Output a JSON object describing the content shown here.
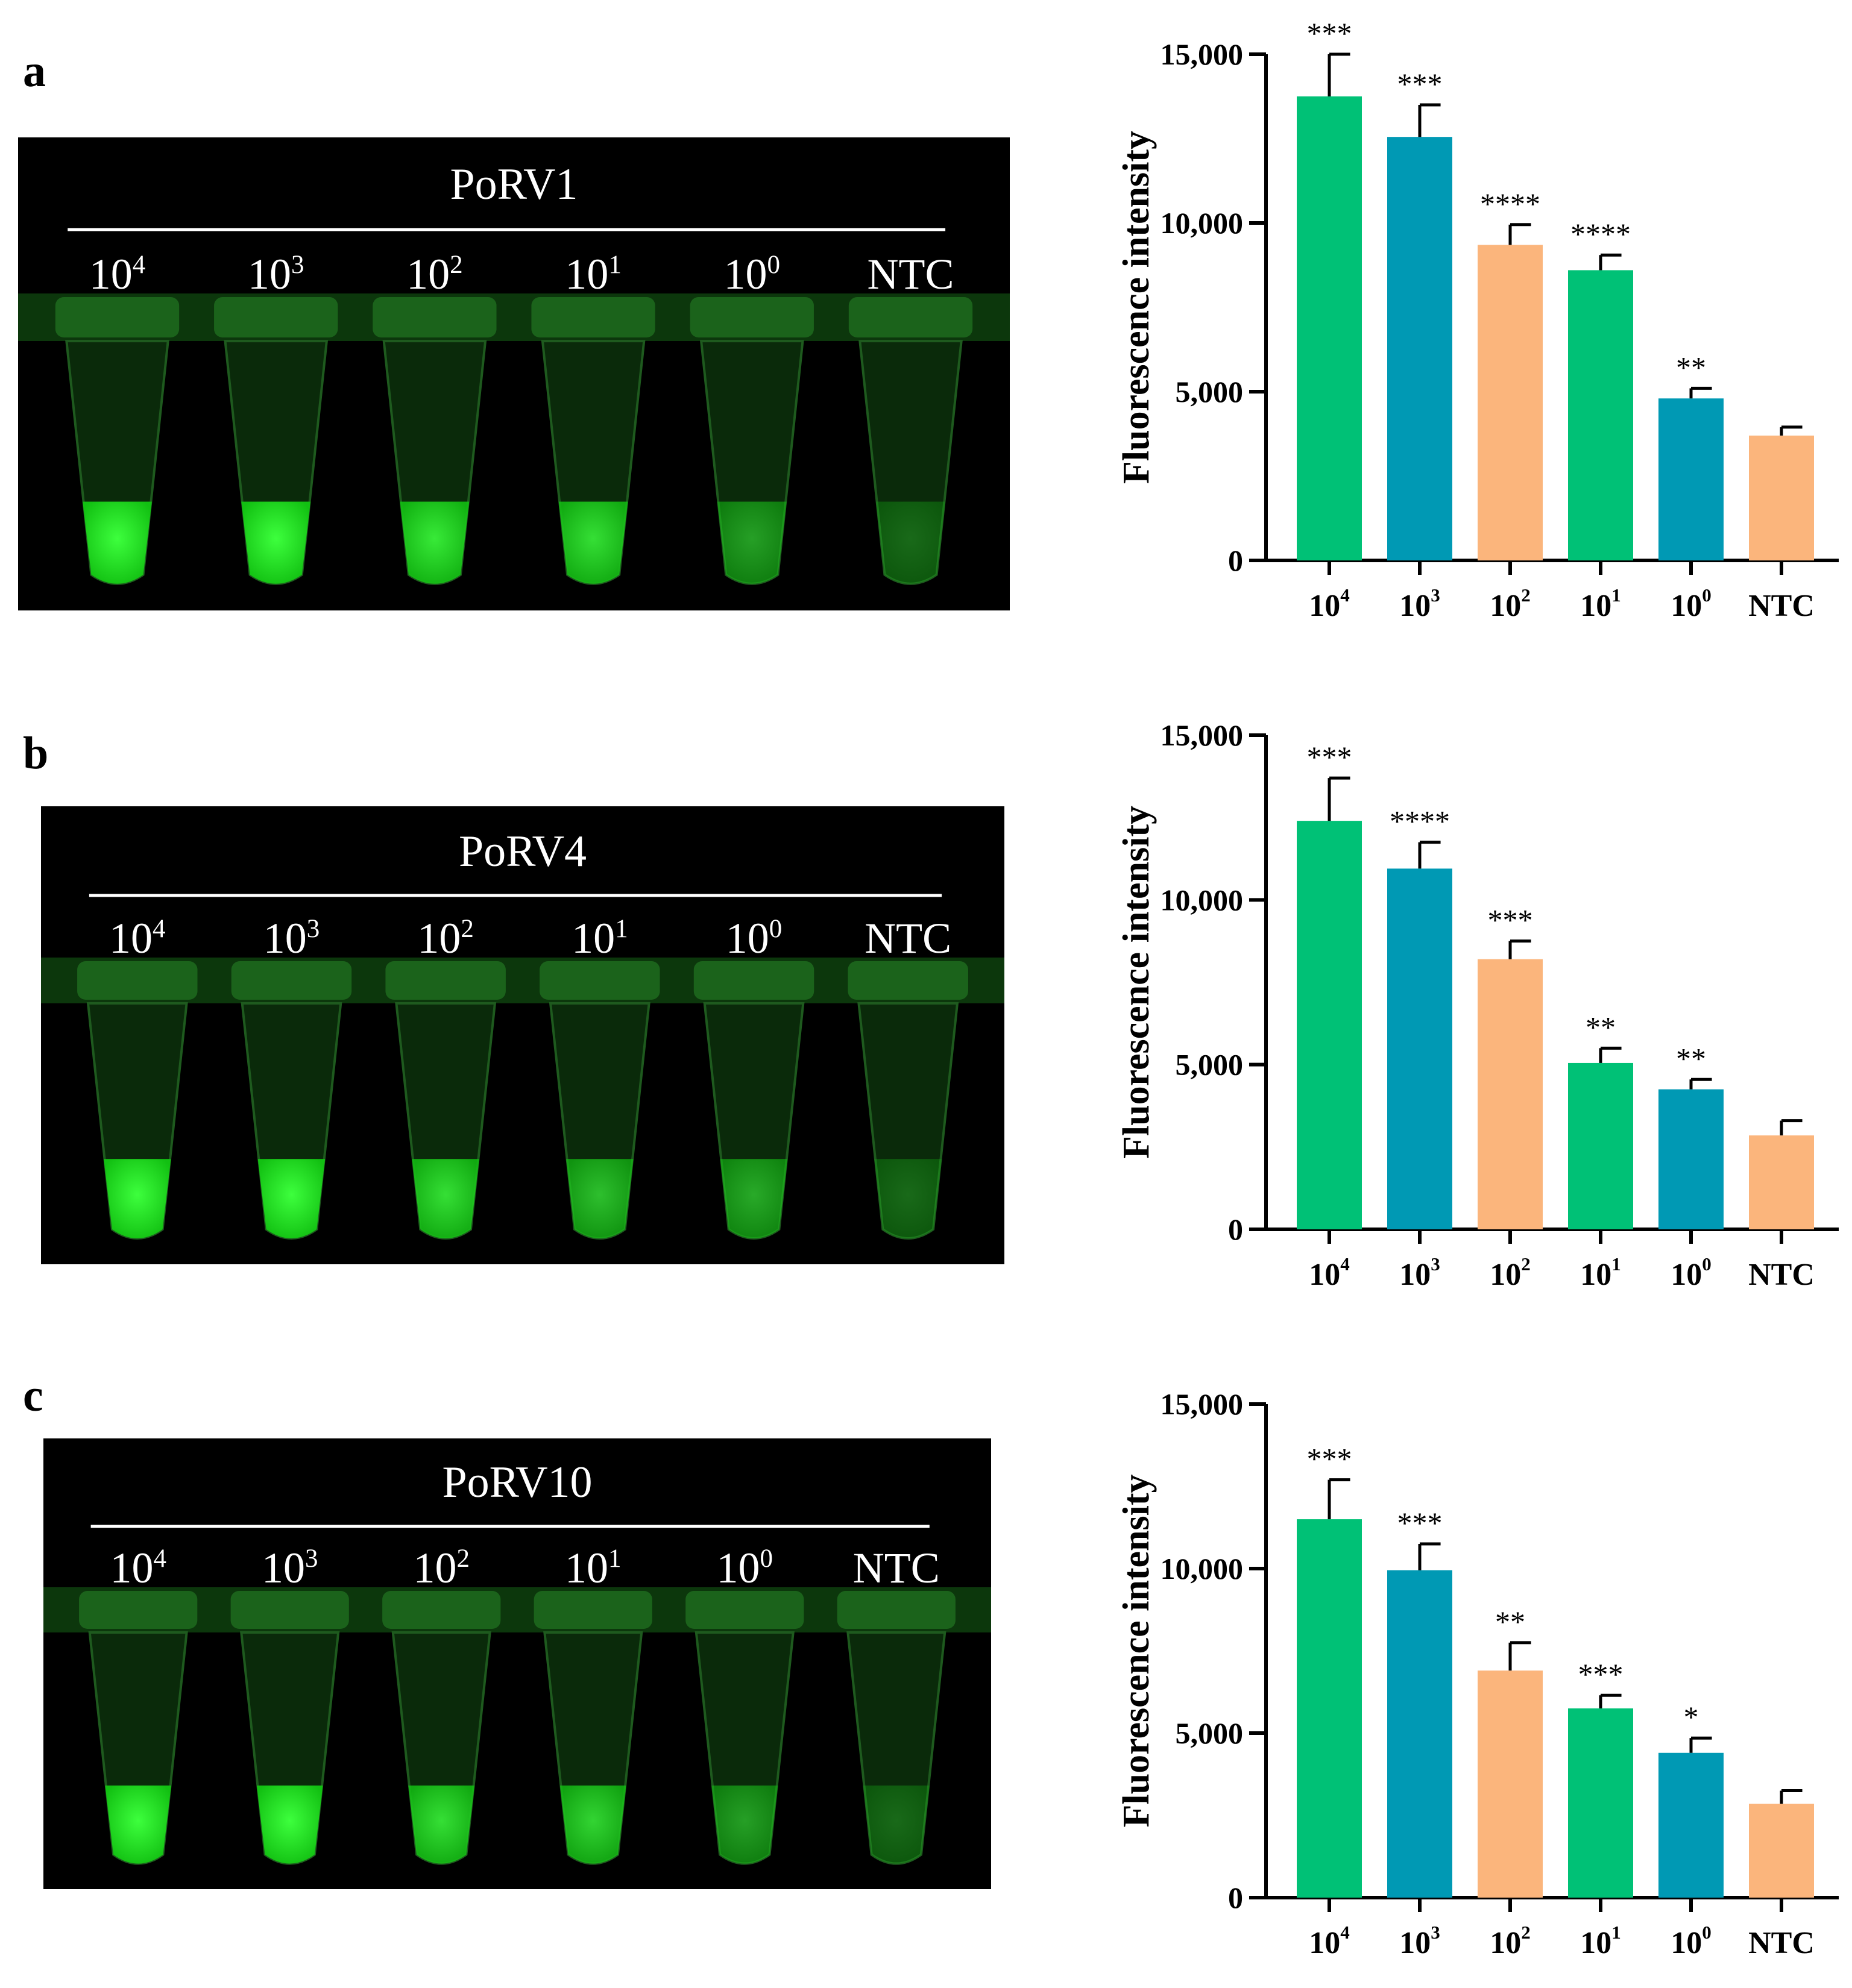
{
  "panels": [
    {
      "label": "a",
      "photo": {
        "title": "PoRV1",
        "lanes": [
          "10^4",
          "10^3",
          "10^2",
          "10^1",
          "10^0",
          "NTC"
        ],
        "glow": [
          1.0,
          1.0,
          0.9,
          0.85,
          0.55,
          0.3
        ]
      },
      "chart_index": 0
    },
    {
      "label": "b",
      "photo": {
        "title": "PoRV4",
        "lanes": [
          "10^4",
          "10^3",
          "10^2",
          "10^1",
          "10^0",
          "NTC"
        ],
        "glow": [
          1.0,
          1.0,
          0.85,
          0.7,
          0.6,
          0.3
        ]
      },
      "chart_index": 1
    },
    {
      "label": "c",
      "photo": {
        "title": "PoRV10",
        "lanes": [
          "10^4",
          "10^3",
          "10^2",
          "10^1",
          "10^0",
          "NTC"
        ],
        "glow": [
          1.0,
          1.0,
          0.85,
          0.8,
          0.55,
          0.3
        ]
      },
      "chart_index": 2
    }
  ],
  "colors": {
    "green": "#00c176",
    "teal": "#0099b4",
    "orange": "#fbb57c",
    "photo_bg": "#000000",
    "photo_text": "#ffffff"
  },
  "chart_data": [
    {
      "type": "bar",
      "title": "",
      "xlabel": "",
      "ylabel": "Fluorescence intensity",
      "categories": [
        "10^4",
        "10^3",
        "10^2",
        "10^1",
        "10^0",
        "NTC"
      ],
      "values": [
        13750,
        12550,
        9350,
        8600,
        4800,
        3700
      ],
      "errors": [
        1250,
        950,
        600,
        450,
        300,
        250
      ],
      "significance": [
        "***",
        "***",
        "****",
        "****",
        "**",
        ""
      ],
      "bar_colors": [
        "green",
        "teal",
        "orange",
        "green",
        "teal",
        "orange"
      ],
      "ylim": [
        0,
        15000
      ],
      "yticks": [
        0,
        5000,
        10000,
        15000
      ],
      "ytick_labels": [
        "0",
        "5,000",
        "10,000",
        "15,000"
      ]
    },
    {
      "type": "bar",
      "title": "",
      "xlabel": "",
      "ylabel": "Fluorescence intensity",
      "categories": [
        "10^4",
        "10^3",
        "10^2",
        "10^1",
        "10^0",
        "NTC"
      ],
      "values": [
        12400,
        10950,
        8200,
        5050,
        4250,
        2850
      ],
      "errors": [
        1300,
        800,
        550,
        450,
        300,
        450
      ],
      "significance": [
        "***",
        "****",
        "***",
        "**",
        "**",
        ""
      ],
      "bar_colors": [
        "green",
        "teal",
        "orange",
        "green",
        "teal",
        "orange"
      ],
      "ylim": [
        0,
        15000
      ],
      "yticks": [
        0,
        5000,
        10000,
        15000
      ],
      "ytick_labels": [
        "0",
        "5,000",
        "10,000",
        "15,000"
      ]
    },
    {
      "type": "bar",
      "title": "",
      "xlabel": "",
      "ylabel": "Fluorescence intensity",
      "categories": [
        "10^4",
        "10^3",
        "10^2",
        "10^1",
        "10^0",
        "NTC"
      ],
      "values": [
        11500,
        9950,
        6900,
        5750,
        4400,
        2850
      ],
      "errors": [
        1200,
        800,
        850,
        400,
        450,
        400
      ],
      "significance": [
        "***",
        "***",
        "**",
        "***",
        "*",
        ""
      ],
      "bar_colors": [
        "green",
        "teal",
        "orange",
        "green",
        "teal",
        "orange"
      ],
      "ylim": [
        0,
        15000
      ],
      "yticks": [
        0,
        5000,
        10000,
        15000
      ],
      "ytick_labels": [
        "0",
        "5,000",
        "10,000",
        "15,000"
      ]
    }
  ]
}
